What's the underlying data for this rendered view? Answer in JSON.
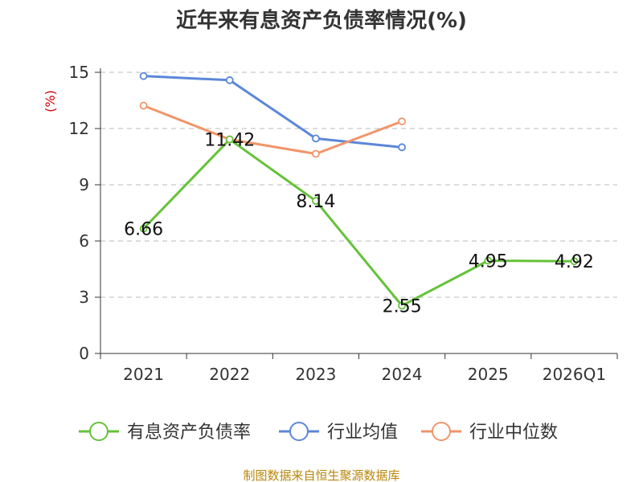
{
  "chart_data": {
    "type": "line",
    "title": "近年来有息资产负债率情况(%)",
    "ylabel": "(%)",
    "xlabel": "",
    "categories": [
      "2021",
      "2022",
      "2023",
      "2024",
      "2025",
      "2026Q1"
    ],
    "ylim": [
      0,
      15
    ],
    "yticks": [
      0,
      3,
      6,
      9,
      12,
      15
    ],
    "grid": true,
    "legend_position": "bottom",
    "series": [
      {
        "name": "有息资产负债率",
        "color": "#66c23a",
        "values": [
          6.66,
          11.42,
          8.14,
          2.55,
          4.95,
          4.92
        ],
        "labels": [
          "6.66",
          "11.42",
          "8.14",
          "2.55",
          "4.95",
          "4.92"
        ]
      },
      {
        "name": "行业均值",
        "color": "#5b87d8",
        "values": [
          14.8,
          14.58,
          11.47,
          11.0,
          null,
          null
        ]
      },
      {
        "name": "行业中位数",
        "color": "#f0956a",
        "values": [
          13.22,
          11.42,
          10.65,
          12.38,
          null,
          null
        ]
      }
    ],
    "source": "制图数据来自恒生聚源数据库"
  }
}
